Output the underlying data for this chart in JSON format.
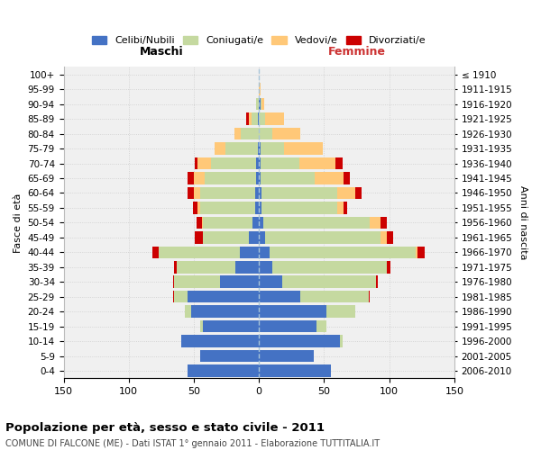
{
  "age_groups": [
    "0-4",
    "5-9",
    "10-14",
    "15-19",
    "20-24",
    "25-29",
    "30-34",
    "35-39",
    "40-44",
    "45-49",
    "50-54",
    "55-59",
    "60-64",
    "65-69",
    "70-74",
    "75-79",
    "80-84",
    "85-89",
    "90-94",
    "95-99",
    "100+"
  ],
  "birth_years": [
    "2006-2010",
    "2001-2005",
    "1996-2000",
    "1991-1995",
    "1986-1990",
    "1981-1985",
    "1976-1980",
    "1971-1975",
    "1966-1970",
    "1961-1965",
    "1956-1960",
    "1951-1955",
    "1946-1950",
    "1941-1945",
    "1936-1940",
    "1931-1935",
    "1926-1930",
    "1921-1925",
    "1916-1920",
    "1911-1915",
    "≤ 1910"
  ],
  "colors": {
    "celibi": "#4472c4",
    "coniugati": "#c5d9a0",
    "vedovi": "#ffc878",
    "divorziati": "#cc0000"
  },
  "males": {
    "celibi": [
      55,
      45,
      60,
      43,
      52,
      55,
      30,
      18,
      15,
      8,
      5,
      3,
      3,
      2,
      2,
      1,
      0,
      1,
      0,
      0,
      0
    ],
    "coniugati": [
      0,
      0,
      0,
      2,
      5,
      10,
      35,
      45,
      62,
      35,
      38,
      42,
      42,
      40,
      35,
      25,
      14,
      5,
      2,
      0,
      0
    ],
    "vedovi": [
      0,
      0,
      0,
      0,
      0,
      0,
      0,
      0,
      0,
      0,
      1,
      2,
      5,
      8,
      10,
      8,
      5,
      2,
      0,
      0,
      0
    ],
    "divorziati": [
      0,
      0,
      0,
      0,
      0,
      1,
      1,
      2,
      5,
      6,
      4,
      4,
      5,
      5,
      2,
      0,
      0,
      2,
      0,
      0,
      0
    ]
  },
  "females": {
    "nubili": [
      55,
      42,
      62,
      44,
      52,
      32,
      18,
      10,
      8,
      5,
      3,
      2,
      2,
      1,
      1,
      1,
      0,
      0,
      1,
      0,
      0
    ],
    "coniugati": [
      0,
      0,
      2,
      8,
      22,
      52,
      72,
      88,
      112,
      88,
      82,
      58,
      58,
      42,
      30,
      18,
      10,
      5,
      1,
      0,
      0
    ],
    "vedovi": [
      0,
      0,
      0,
      0,
      0,
      0,
      0,
      0,
      2,
      5,
      8,
      5,
      14,
      22,
      28,
      30,
      22,
      14,
      2,
      1,
      0
    ],
    "divorziati": [
      0,
      0,
      0,
      0,
      0,
      1,
      1,
      3,
      5,
      5,
      5,
      3,
      5,
      5,
      5,
      0,
      0,
      0,
      0,
      0,
      0
    ]
  },
  "xlim": 150,
  "title": "Popolazione per età, sesso e stato civile - 2011",
  "subtitle": "COMUNE DI FALCONE (ME) - Dati ISTAT 1° gennaio 2011 - Elaborazione TUTTITALIA.IT",
  "xlabel_left": "Maschi",
  "xlabel_right": "Femmine",
  "ylabel_left": "Fasce di età",
  "ylabel_right": "Anni di nascita",
  "legend_labels": [
    "Celibi/Nubili",
    "Coniugati/e",
    "Vedovi/e",
    "Divorziati/e"
  ],
  "bg_color": "#f0f0f0",
  "grid_color": "#cccccc"
}
